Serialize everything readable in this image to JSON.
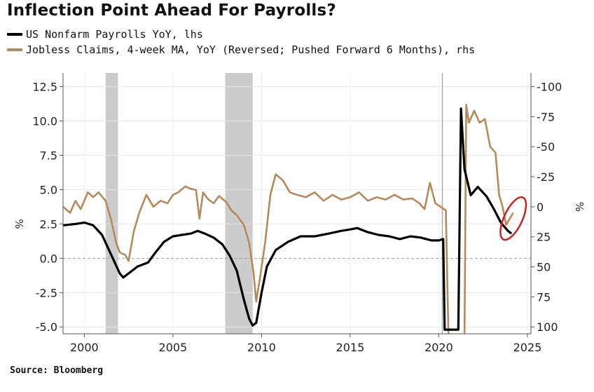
{
  "title": "Inflection Point Ahead For Payrolls?",
  "source": "Source: Bloomberg",
  "colors": {
    "payrolls": "#000000",
    "claims": "#b5895a",
    "recession": "#cccccc",
    "highlight": "#cc2222"
  },
  "chart_data": {
    "type": "line",
    "title": "Inflection Point Ahead For Payrolls?",
    "series": [
      {
        "name": "US Nonfarm Payrolls YoY, lhs",
        "axis": "left",
        "points": [
          [
            1998.8,
            2.4
          ],
          [
            1999.5,
            2.5
          ],
          [
            2000.0,
            2.6
          ],
          [
            2000.5,
            2.4
          ],
          [
            2001.0,
            1.7
          ],
          [
            2001.5,
            0.3
          ],
          [
            2002.0,
            -1.1
          ],
          [
            2002.2,
            -1.4
          ],
          [
            2002.6,
            -1.0
          ],
          [
            2003.0,
            -0.6
          ],
          [
            2003.6,
            -0.3
          ],
          [
            2004.0,
            0.4
          ],
          [
            2004.5,
            1.2
          ],
          [
            2005.0,
            1.6
          ],
          [
            2005.5,
            1.7
          ],
          [
            2006.0,
            1.8
          ],
          [
            2006.4,
            2.0
          ],
          [
            2006.8,
            1.8
          ],
          [
            2007.3,
            1.5
          ],
          [
            2007.8,
            1.0
          ],
          [
            2008.2,
            0.2
          ],
          [
            2008.6,
            -0.9
          ],
          [
            2009.0,
            -3.0
          ],
          [
            2009.3,
            -4.4
          ],
          [
            2009.5,
            -4.9
          ],
          [
            2009.7,
            -4.7
          ],
          [
            2010.0,
            -2.5
          ],
          [
            2010.3,
            -0.6
          ],
          [
            2010.8,
            0.6
          ],
          [
            2011.5,
            1.2
          ],
          [
            2012.2,
            1.6
          ],
          [
            2013.0,
            1.6
          ],
          [
            2013.8,
            1.8
          ],
          [
            2014.5,
            2.0
          ],
          [
            2015.0,
            2.1
          ],
          [
            2015.4,
            2.2
          ],
          [
            2016.0,
            1.9
          ],
          [
            2016.6,
            1.7
          ],
          [
            2017.2,
            1.6
          ],
          [
            2017.8,
            1.4
          ],
          [
            2018.4,
            1.6
          ],
          [
            2019.0,
            1.5
          ],
          [
            2019.6,
            1.3
          ],
          [
            2020.0,
            1.3
          ],
          [
            2020.25,
            1.4
          ],
          [
            2020.33,
            -5.2
          ],
          [
            2021.1,
            -5.2
          ],
          [
            2021.25,
            10.9
          ],
          [
            2021.45,
            6.5
          ],
          [
            2021.8,
            4.6
          ],
          [
            2022.2,
            5.2
          ],
          [
            2022.7,
            4.5
          ],
          [
            2023.1,
            3.6
          ],
          [
            2023.5,
            2.6
          ],
          [
            2023.9,
            2.0
          ],
          [
            2024.1,
            1.8
          ]
        ]
      },
      {
        "name": "Jobless Claims, 4-week MA, YoY (Reversed; Pushed Forward 6 Months), rhs",
        "axis": "right",
        "points": [
          [
            1998.8,
            0
          ],
          [
            1999.2,
            5
          ],
          [
            1999.5,
            -5
          ],
          [
            1999.8,
            2
          ],
          [
            2000.2,
            -12
          ],
          [
            2000.5,
            -8
          ],
          [
            2000.8,
            -12
          ],
          [
            2001.2,
            -5
          ],
          [
            2001.5,
            10
          ],
          [
            2001.8,
            30
          ],
          [
            2002.0,
            38
          ],
          [
            2002.3,
            40
          ],
          [
            2002.5,
            45
          ],
          [
            2002.8,
            20
          ],
          [
            2003.1,
            5
          ],
          [
            2003.5,
            -10
          ],
          [
            2003.9,
            0
          ],
          [
            2004.3,
            -5
          ],
          [
            2004.7,
            -3
          ],
          [
            2005.0,
            -10
          ],
          [
            2005.3,
            -12
          ],
          [
            2005.7,
            -17
          ],
          [
            2006.0,
            -15
          ],
          [
            2006.3,
            -14
          ],
          [
            2006.5,
            10
          ],
          [
            2006.7,
            -12
          ],
          [
            2007.0,
            -6
          ],
          [
            2007.3,
            -3
          ],
          [
            2007.6,
            -9
          ],
          [
            2008.0,
            -4
          ],
          [
            2008.3,
            3
          ],
          [
            2008.6,
            7
          ],
          [
            2009.0,
            15
          ],
          [
            2009.3,
            30
          ],
          [
            2009.55,
            55
          ],
          [
            2009.7,
            79
          ],
          [
            2009.9,
            60
          ],
          [
            2010.2,
            30
          ],
          [
            2010.5,
            -10
          ],
          [
            2010.8,
            -27
          ],
          [
            2011.2,
            -22
          ],
          [
            2011.6,
            -12
          ],
          [
            2012.0,
            -10
          ],
          [
            2012.5,
            -8
          ],
          [
            2013.0,
            -12
          ],
          [
            2013.5,
            -5
          ],
          [
            2014.0,
            -10
          ],
          [
            2014.5,
            -6
          ],
          [
            2015.0,
            -8
          ],
          [
            2015.5,
            -12
          ],
          [
            2016.0,
            -5
          ],
          [
            2016.5,
            -8
          ],
          [
            2017.0,
            -6
          ],
          [
            2017.5,
            -10
          ],
          [
            2018.0,
            -6
          ],
          [
            2018.5,
            -7
          ],
          [
            2018.9,
            -3
          ],
          [
            2019.2,
            2
          ],
          [
            2019.5,
            -20
          ],
          [
            2019.8,
            -3
          ],
          [
            2020.1,
            0
          ],
          [
            2020.4,
            3
          ],
          [
            2020.55,
            110
          ],
          [
            2021.45,
            110
          ],
          [
            2021.55,
            -85
          ],
          [
            2021.7,
            -70
          ],
          [
            2022.0,
            -80
          ],
          [
            2022.3,
            -70
          ],
          [
            2022.6,
            -73
          ],
          [
            2022.9,
            -50
          ],
          [
            2023.2,
            -45
          ],
          [
            2023.4,
            -10
          ],
          [
            2023.6,
            0
          ],
          [
            2023.8,
            15
          ],
          [
            2024.0,
            10
          ],
          [
            2024.2,
            5
          ]
        ]
      }
    ],
    "recessions": [
      [
        2001.2,
        2001.9
      ],
      [
        2007.95,
        2009.5
      ]
    ],
    "vline": 2020.2,
    "xlim": [
      1998.8,
      2025.2
    ],
    "ylim_left": [
      -5.5,
      13.5
    ],
    "ylim_right_reversed": [
      100,
      -100
    ],
    "x_ticks": [
      "2000",
      "2005",
      "2010",
      "2015",
      "2020",
      "2025"
    ],
    "y_ticks_left": [
      "12.5",
      "10.0",
      "7.5",
      "5.0",
      "2.5",
      "0.0",
      "-2.5",
      "-5.0"
    ],
    "y_ticks_right": [
      "-100",
      "-75",
      "-50",
      "-25",
      "0",
      "25",
      "50",
      "75",
      "100"
    ],
    "ylabel_left": "%",
    "ylabel_right": "%",
    "grid": true,
    "zero_line": "dashed",
    "annotation": "red circle around 2024 end"
  }
}
